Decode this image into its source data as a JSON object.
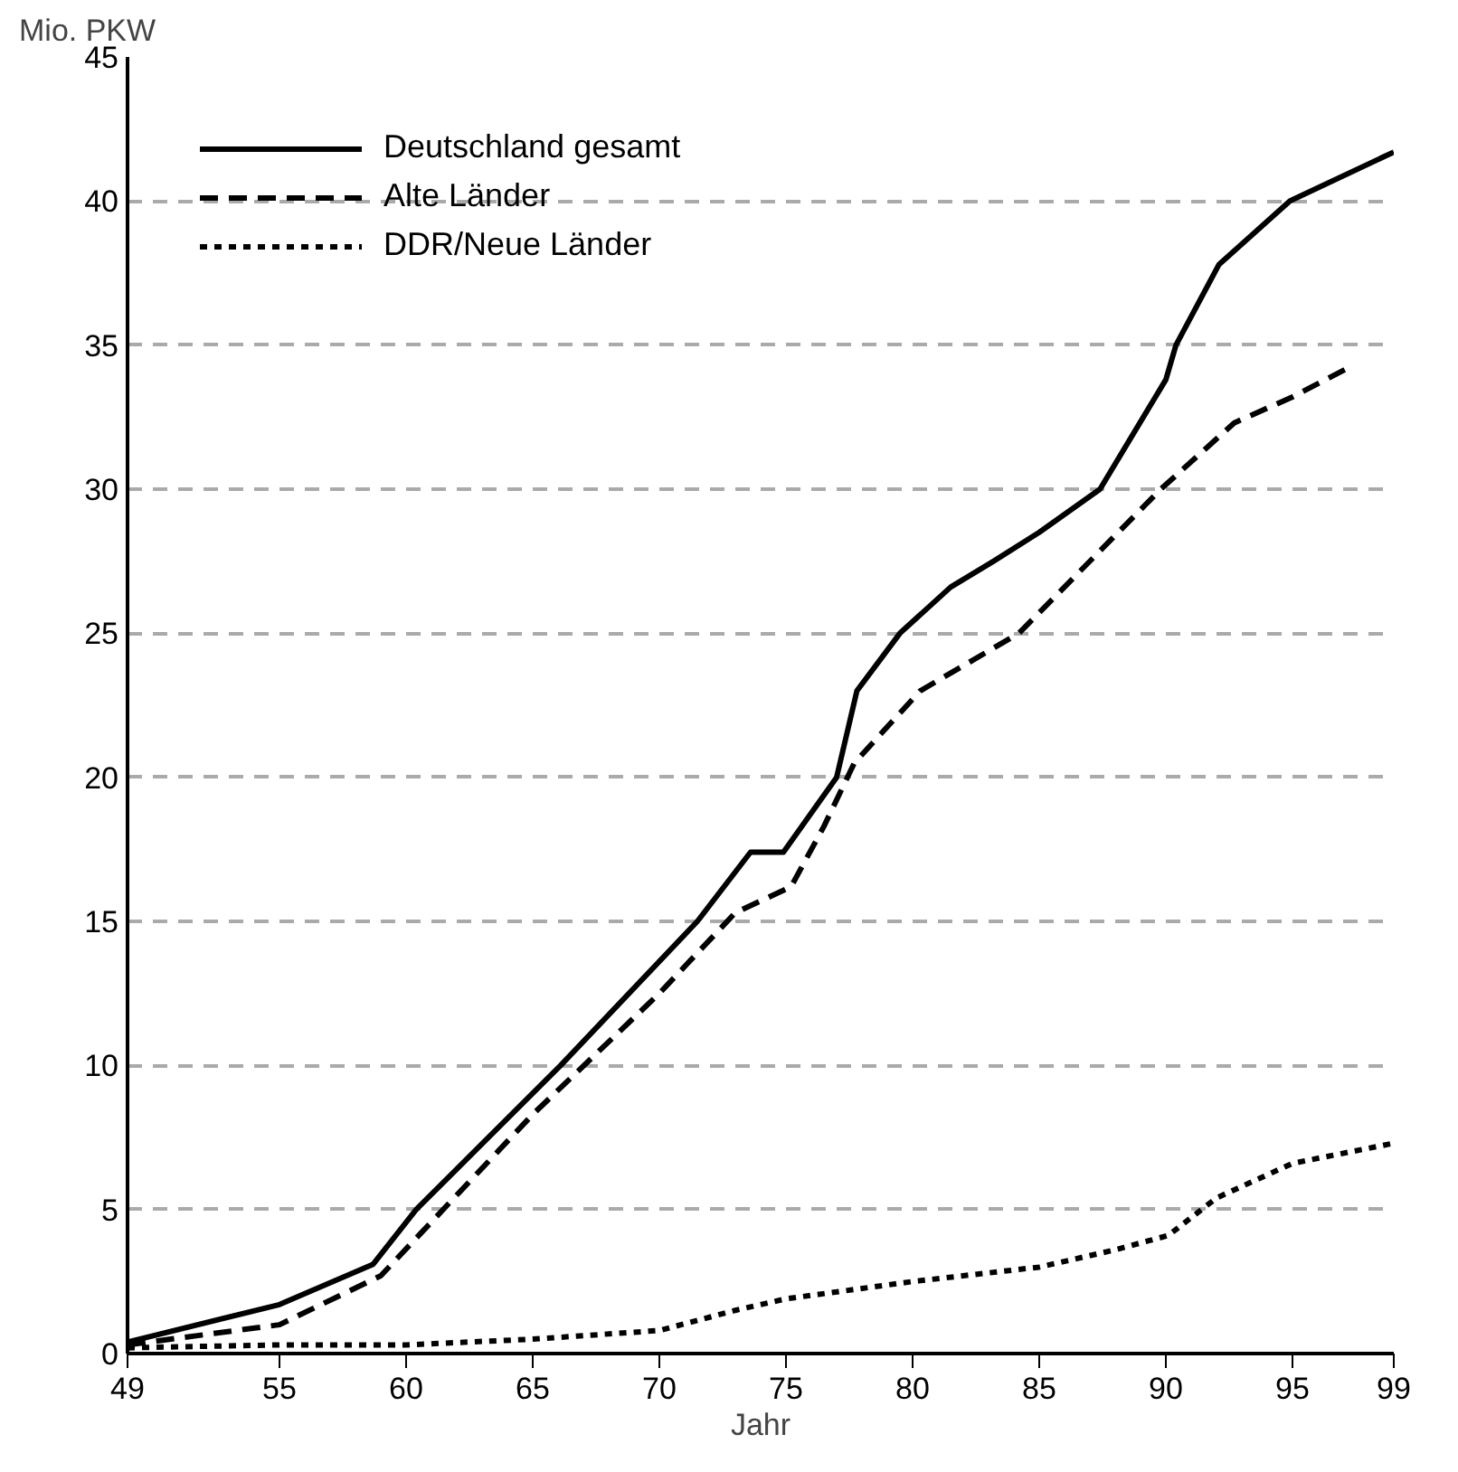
{
  "chart_data": {
    "type": "line",
    "xlabel": "Jahr",
    "ylabel": "Mio. PKW",
    "xlim": [
      49,
      99
    ],
    "ylim": [
      0,
      45
    ],
    "xticks": [
      49,
      55,
      60,
      65,
      70,
      75,
      80,
      85,
      90,
      95,
      99
    ],
    "yticks": [
      0,
      5,
      10,
      15,
      20,
      25,
      30,
      35,
      40,
      45
    ],
    "grid": "y",
    "legend": "top left",
    "marker": "none",
    "series": [
      {
        "name": "Deutschland gesamt",
        "color": "#000000",
        "line_style": "solid",
        "x": [
          49,
          55,
          58.7,
          60.4,
          66.1,
          71.5,
          73.6,
          74.9,
          77,
          77.8,
          79.5,
          81.5,
          83.2,
          85,
          87.4,
          90,
          90.4,
          92.1,
          94.9,
          99
        ],
        "values": [
          0.4,
          1.7,
          3.1,
          5,
          10,
          15,
          17.4,
          17.4,
          20,
          23,
          25,
          26.6,
          27.5,
          28.5,
          30,
          33.8,
          35,
          37.8,
          40,
          41.7
        ]
      },
      {
        "name": "Alte Länder",
        "color": "#000000",
        "line_style": "dashed",
        "x": [
          49,
          55,
          59,
          65,
          70,
          73,
          75.2,
          76.5,
          77.7,
          80.3,
          84.2,
          89.8,
          92.7,
          95,
          97.4
        ],
        "values": [
          0.3,
          1.0,
          2.7,
          8.3,
          12.5,
          15.3,
          16.2,
          18.3,
          20.5,
          23,
          25,
          30,
          32.3,
          33.2,
          34.3
        ]
      },
      {
        "name": "DDR/Neue Länder",
        "color": "#000000",
        "line_style": "dotted",
        "x": [
          49,
          55,
          60,
          65,
          70,
          73,
          75,
          80,
          85,
          88,
          90.1,
          92,
          95,
          99
        ],
        "values": [
          0.2,
          0.3,
          0.3,
          0.5,
          0.8,
          1.5,
          1.9,
          2.5,
          3.0,
          3.6,
          4.1,
          5.4,
          6.6,
          7.3
        ]
      }
    ]
  }
}
